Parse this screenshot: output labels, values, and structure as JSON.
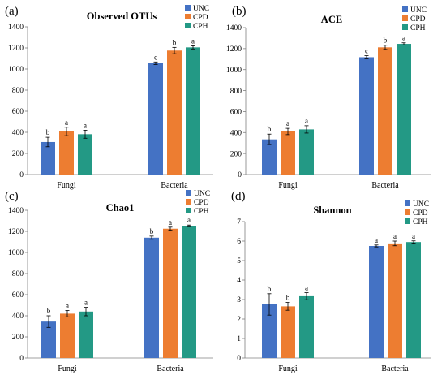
{
  "colors": {
    "UNC": "#4472C4",
    "CPD": "#ED7D31",
    "CPH": "#239985",
    "axis": "#808080"
  },
  "chart_data": [
    {
      "type": "bar",
      "panel_label": "(a)",
      "title": "Observed OTUs",
      "categories": [
        "Fungi",
        "Bacteria"
      ],
      "ylim": [
        0,
        1400
      ],
      "yticks": [
        0,
        200,
        400,
        600,
        800,
        1000,
        1200,
        1400
      ],
      "legend": "top-right",
      "grid": false,
      "series": [
        {
          "name": "UNC",
          "values": [
            308,
            1055
          ],
          "errors": [
            45,
            12
          ],
          "letters": [
            "b",
            "c"
          ]
        },
        {
          "name": "CPD",
          "values": [
            408,
            1175
          ],
          "errors": [
            40,
            30
          ],
          "letters": [
            "a",
            "b"
          ]
        },
        {
          "name": "CPH",
          "values": [
            382,
            1205
          ],
          "errors": [
            38,
            15
          ],
          "letters": [
            "a",
            "a"
          ]
        }
      ]
    },
    {
      "type": "bar",
      "panel_label": "(b)",
      "title": "ACE",
      "categories": [
        "Fungi",
        "Bacteria"
      ],
      "ylim": [
        0,
        1400
      ],
      "yticks": [
        0,
        200,
        400,
        600,
        800,
        1000,
        1200,
        1400
      ],
      "legend": "top-right",
      "grid": false,
      "series": [
        {
          "name": "UNC",
          "values": [
            335,
            1118
          ],
          "errors": [
            50,
            15
          ],
          "letters": [
            "b",
            "c"
          ]
        },
        {
          "name": "CPD",
          "values": [
            410,
            1212
          ],
          "errors": [
            30,
            20
          ],
          "letters": [
            "a",
            "b"
          ]
        },
        {
          "name": "CPH",
          "values": [
            430,
            1245
          ],
          "errors": [
            35,
            10
          ],
          "letters": [
            "a",
            "a"
          ]
        }
      ]
    },
    {
      "type": "bar",
      "panel_label": "(c)",
      "title": "Chao1",
      "categories": [
        "Fungi",
        "Bacteria"
      ],
      "ylim": [
        0,
        1400
      ],
      "yticks": [
        0,
        200,
        400,
        600,
        800,
        1000,
        1200,
        1400
      ],
      "legend": "top-right",
      "grid": false,
      "series": [
        {
          "name": "UNC",
          "values": [
            345,
            1140
          ],
          "errors": [
            55,
            15
          ],
          "letters": [
            "b",
            "b"
          ]
        },
        {
          "name": "CPD",
          "values": [
            420,
            1225
          ],
          "errors": [
            30,
            15
          ],
          "letters": [
            "a",
            "a"
          ]
        },
        {
          "name": "CPH",
          "values": [
            440,
            1252
          ],
          "errors": [
            40,
            8
          ],
          "letters": [
            "a",
            "a"
          ]
        }
      ]
    },
    {
      "type": "bar",
      "panel_label": "(d)",
      "title": "Shannon",
      "categories": [
        "Fungi",
        "Bacteria"
      ],
      "ylim": [
        0,
        7
      ],
      "yticks": [
        0,
        1,
        2,
        3,
        4,
        5,
        6,
        7
      ],
      "legend": "top-right",
      "grid": false,
      "series": [
        {
          "name": "UNC",
          "values": [
            2.75,
            5.75
          ],
          "errors": [
            0.55,
            0.05
          ],
          "letters": [
            "b",
            "a"
          ]
        },
        {
          "name": "CPD",
          "values": [
            2.65,
            5.88
          ],
          "errors": [
            0.2,
            0.12
          ],
          "letters": [
            "b",
            "a"
          ]
        },
        {
          "name": "CPH",
          "values": [
            3.17,
            5.95
          ],
          "errors": [
            0.18,
            0.06
          ],
          "letters": [
            "a",
            "a"
          ]
        }
      ]
    }
  ]
}
